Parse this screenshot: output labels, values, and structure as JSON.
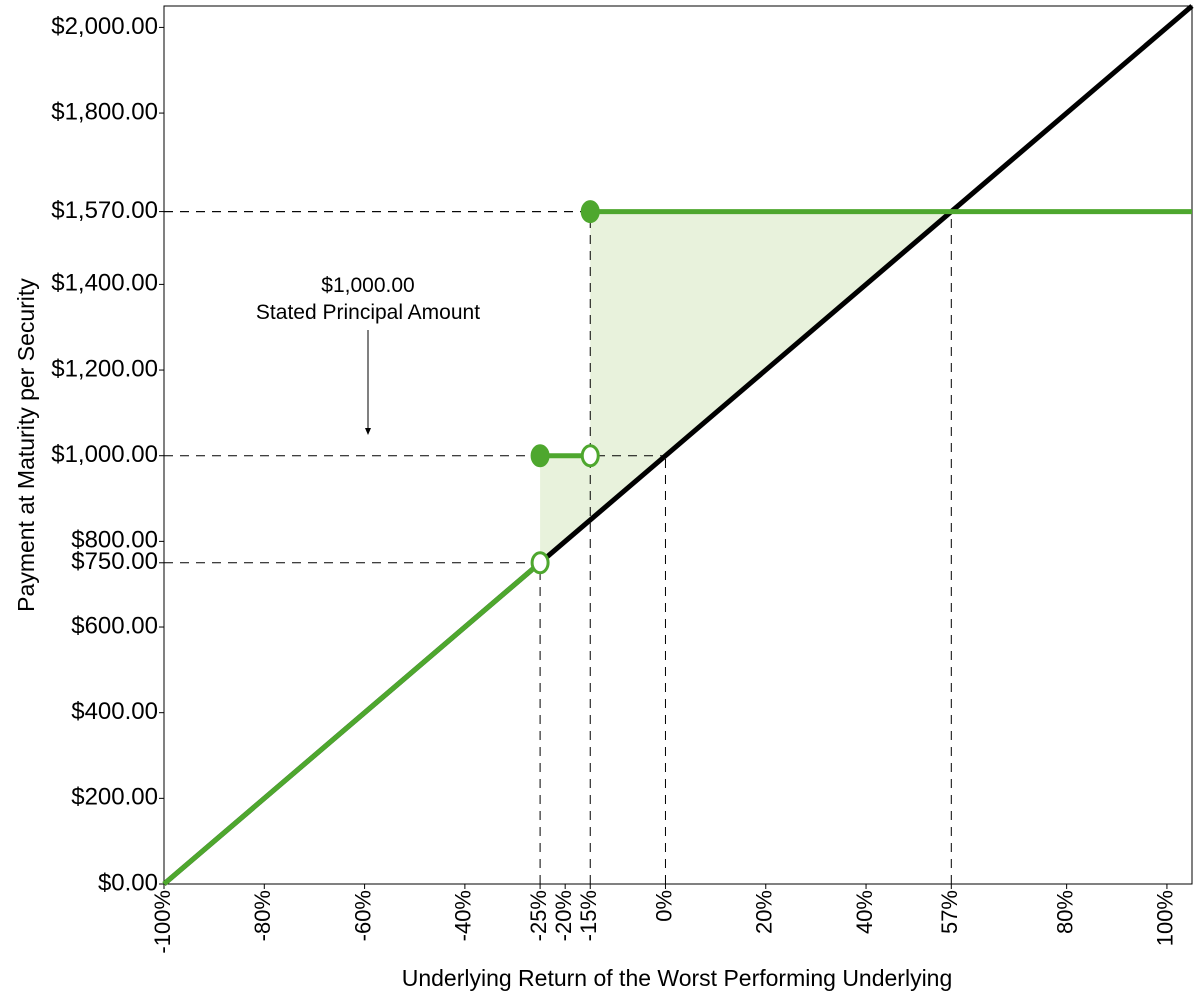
{
  "chart_data": {
    "type": "line",
    "xlabel": "Underlying Return of the Worst Performing Underlying",
    "ylabel": "Payment at Maturity per Security",
    "annotation": [
      "$1,000.00",
      "Stated Principal Amount"
    ],
    "xlim": [
      -100,
      105
    ],
    "ylim": [
      0,
      2050
    ],
    "xticks": [
      {
        "value": -100,
        "label": "-100%"
      },
      {
        "value": -80,
        "label": "-80%"
      },
      {
        "value": -60,
        "label": "-60%"
      },
      {
        "value": -40,
        "label": "-40%"
      },
      {
        "value": -25,
        "label": "-25%"
      },
      {
        "value": -20,
        "label": "-20%"
      },
      {
        "value": -15,
        "label": "-15%"
      },
      {
        "value": 0,
        "label": "0%"
      },
      {
        "value": 20,
        "label": "20%"
      },
      {
        "value": 40,
        "label": "40%"
      },
      {
        "value": 57,
        "label": "57%"
      },
      {
        "value": 80,
        "label": "80%"
      },
      {
        "value": 100,
        "label": "100%"
      }
    ],
    "yticks": [
      {
        "value": 0,
        "label": "$0.00"
      },
      {
        "value": 200,
        "label": "$200.00"
      },
      {
        "value": 400,
        "label": "$400.00"
      },
      {
        "value": 600,
        "label": "$600.00"
      },
      {
        "value": 750,
        "label": "$750.00"
      },
      {
        "value": 800,
        "label": "$800.00"
      },
      {
        "value": 1000,
        "label": "$1,000.00"
      },
      {
        "value": 1200,
        "label": "$1,200.00"
      },
      {
        "value": 1400,
        "label": "$1,400.00"
      },
      {
        "value": 1570,
        "label": "$1,570.00"
      },
      {
        "value": 1800,
        "label": "$1,800.00"
      },
      {
        "value": 2000,
        "label": "$2,000.00"
      }
    ],
    "shade": {
      "color": "#e8f2dc",
      "x": [
        -25,
        -25,
        -15,
        -15,
        57
      ],
      "values": [
        750,
        1000,
        1000,
        1570,
        1570
      ]
    },
    "guides": [
      {
        "x": -25,
        "y": 750
      },
      {
        "x": -15,
        "y": 1570
      },
      {
        "x": 0,
        "y": 1000
      },
      {
        "x": 57,
        "y": 1570
      }
    ],
    "series": [
      {
        "color": "#000000",
        "x": [
          -100,
          105
        ],
        "values": [
          0,
          2050
        ]
      },
      {
        "color": "#4ea72e",
        "x": [
          -100,
          -25,
          null,
          -25,
          -15,
          null,
          -15,
          105
        ],
        "values": [
          0,
          750,
          null,
          1000,
          1000,
          null,
          1570,
          1570
        ]
      }
    ],
    "markers": [
      {
        "x": -25,
        "y": 750,
        "filled": false
      },
      {
        "x": -25,
        "y": 1000,
        "filled": true
      },
      {
        "x": -15,
        "y": 1000,
        "filled": false
      },
      {
        "x": -15,
        "y": 1570,
        "filled": true
      }
    ],
    "marker_color": "#4ea72e"
  }
}
